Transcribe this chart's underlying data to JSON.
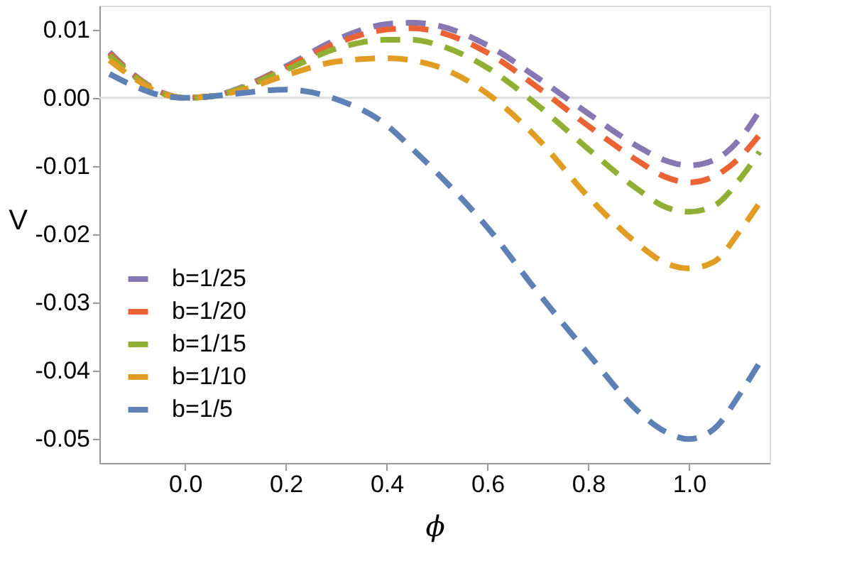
{
  "chart_data": {
    "type": "line",
    "xlabel": "ϕ",
    "ylabel": "V",
    "x": [
      -0.15,
      -0.1,
      -0.05,
      0,
      0.05,
      0.1,
      0.2,
      0.3,
      0.4,
      0.45,
      0.5,
      0.6,
      0.7,
      0.8,
      0.9,
      0.95,
      1.0,
      1.05,
      1.1,
      1.14
    ],
    "series": [
      {
        "name": "b=1/25",
        "color": "#8778b3",
        "values": [
          0.0067,
          0.0033,
          0.0009,
          0,
          0.0002,
          0.0012,
          0.0046,
          0.0085,
          0.0108,
          0.011,
          0.0106,
          0.0077,
          0.0029,
          -0.0023,
          -0.0072,
          -0.0091,
          -0.0099,
          -0.0091,
          -0.0061,
          -0.0019
        ]
      },
      {
        "name": "b=1/20",
        "color": "#eb6235",
        "values": [
          0.0065,
          0.0032,
          0.0009,
          0,
          0.0002,
          0.0011,
          0.0044,
          0.008,
          0.01,
          0.0102,
          0.0097,
          0.0066,
          0.0015,
          -0.0041,
          -0.0093,
          -0.0115,
          -0.0124,
          -0.0115,
          -0.0088,
          -0.0054
        ]
      },
      {
        "name": "b=1/15",
        "color": "#8fb032",
        "values": [
          0.0062,
          0.0031,
          0.0008,
          0,
          0.0002,
          0.0011,
          0.0041,
          0.0072,
          0.0085,
          0.0085,
          0.0078,
          0.0044,
          -0.0011,
          -0.0075,
          -0.0135,
          -0.0159,
          -0.0167,
          -0.0158,
          -0.012,
          -0.0079
        ]
      },
      {
        "name": "b=1/10",
        "color": "#e19c24",
        "values": [
          0.0055,
          0.0028,
          0.0007,
          0,
          0.0002,
          0.0009,
          0.0033,
          0.0053,
          0.0058,
          0.0055,
          0.0046,
          0.0006,
          -0.006,
          -0.0145,
          -0.0215,
          -0.0241,
          -0.025,
          -0.024,
          -0.0196,
          -0.0154
        ]
      },
      {
        "name": "b=1/5",
        "color": "#5e81b5",
        "values": [
          0.0035,
          0.0017,
          0.0004,
          0,
          0.0002,
          0.0006,
          0.0012,
          -0.0002,
          -0.004,
          -0.0074,
          -0.011,
          -0.019,
          -0.0285,
          -0.0375,
          -0.046,
          -0.0488,
          -0.05,
          -0.0485,
          -0.0435,
          -0.0388
        ]
      }
    ],
    "xlim": [
      -0.17,
      1.16
    ],
    "ylim": [
      -0.0535,
      0.0135
    ],
    "xticks": [
      {
        "value": 0,
        "label": "0.0"
      },
      0.2,
      0.4,
      0.6,
      0.8,
      {
        "value": 1,
        "label": "1.0"
      }
    ],
    "yticks": [
      -0.05,
      -0.04,
      -0.03,
      -0.02,
      -0.01,
      {
        "value": 0,
        "label": "0.00"
      },
      0.01
    ],
    "ref_lines": [
      {
        "axis": "y",
        "value": 0,
        "color": "#dddddd"
      }
    ],
    "grid": false,
    "legend": "left",
    "line_style": "dashed",
    "marker": "none"
  }
}
